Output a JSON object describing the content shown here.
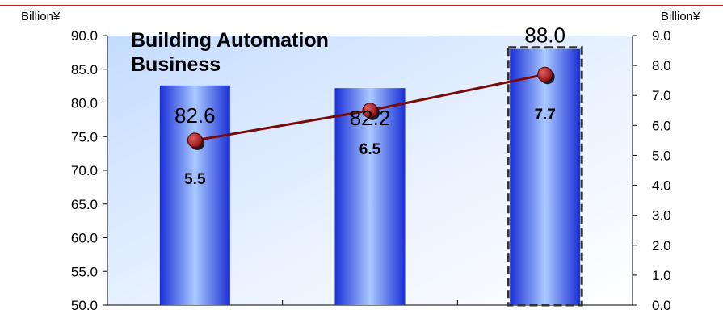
{
  "header": {
    "left_unit": "Billion¥",
    "right_unit": "Billion¥"
  },
  "chart_data": {
    "type": "bar",
    "title": [
      "Building Automation",
      "Business"
    ],
    "categories": [
      "",
      "",
      ""
    ],
    "series": [
      {
        "type": "bar",
        "axis": "left",
        "values": [
          82.6,
          82.2,
          88.0
        ],
        "labels": [
          "82.6",
          "82.2",
          "88.0"
        ],
        "highlight_index": 2
      },
      {
        "type": "line",
        "axis": "right",
        "values": [
          5.5,
          6.5,
          7.7
        ],
        "labels": [
          "5.5",
          "6.5",
          "7.7"
        ]
      }
    ],
    "y_left": {
      "min": 50,
      "max": 90,
      "step": 5,
      "ticks": [
        "50.0",
        "55.0",
        "60.0",
        "65.0",
        "70.0",
        "75.0",
        "80.0",
        "85.0",
        "90.0"
      ]
    },
    "y_right": {
      "min": 0,
      "max": 9,
      "step": 1,
      "ticks": [
        "0.0",
        "1.0",
        "2.0",
        "3.0",
        "4.0",
        "5.0",
        "6.0",
        "7.0",
        "8.0",
        "9.0"
      ]
    },
    "colors": {
      "bar_dark": "#1a2fd6",
      "bar_light": "#a9c9ff",
      "line": "#7a0a0a",
      "marker": "#a01515",
      "rule": "#b02020",
      "highlight_border": "#333333"
    },
    "grid": false,
    "legend": "none"
  }
}
